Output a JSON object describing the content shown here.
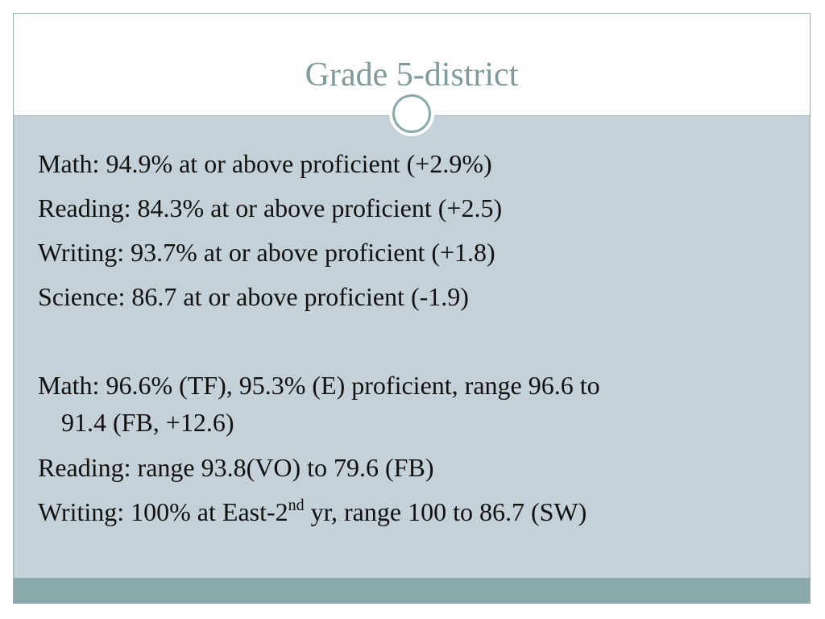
{
  "header": {
    "title": "Grade 5-district"
  },
  "bullets": [
    {
      "lines": [
        "Math:  94.9% at or above proficient (+2.9%)"
      ]
    },
    {
      "lines": [
        "Reading:  84.3% at or above proficient (+2.5)"
      ]
    },
    {
      "lines": [
        "Writing:  93.7% at or above proficient (+1.8)"
      ]
    },
    {
      "lines": [
        "Science:  86.7 at or above proficient (-1.9)"
      ]
    },
    {
      "lines": [
        "Math: 96.6% (TF), 95.3% (E) proficient, range 96.6 to",
        "91.4 (FB, +12.6)"
      ]
    },
    {
      "lines": [
        "Reading:  range 93.8(VO) to 79.6 (FB)"
      ]
    },
    {
      "parts": [
        "Writing: 100% at East-2",
        "nd",
        " yr, range 100 to 86.7 (SW)"
      ]
    }
  ]
}
